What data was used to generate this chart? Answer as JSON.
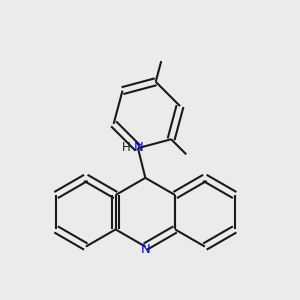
{
  "bg_color": "#ebebeb",
  "bond_color": "#1a1a1a",
  "n_color": "#0000ee",
  "lw": 1.5,
  "dbo": 0.038,
  "figsize": [
    3.0,
    3.0
  ],
  "dpi": 100,
  "xlim": [
    -1.5,
    1.7
  ],
  "ylim": [
    -1.3,
    1.6
  ]
}
